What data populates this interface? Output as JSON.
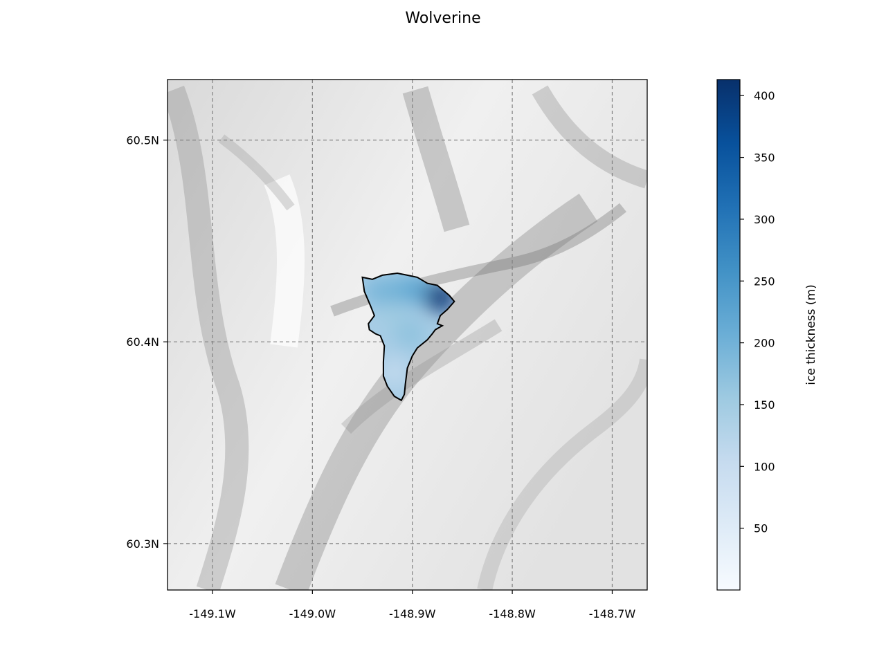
{
  "title": "Wolverine",
  "map": {
    "lon_range": [
      -149.145,
      -148.665
    ],
    "lat_range": [
      60.277,
      60.53
    ],
    "x_ticks": [
      {
        "value": -149.1,
        "label": "-149.1W"
      },
      {
        "value": -149.0,
        "label": "-149.0W"
      },
      {
        "value": -148.9,
        "label": "-148.9W"
      },
      {
        "value": -148.8,
        "label": "-148.8W"
      },
      {
        "value": -148.7,
        "label": "-148.7W"
      }
    ],
    "y_ticks": [
      {
        "value": 60.5,
        "label": "60.5N"
      },
      {
        "value": 60.4,
        "label": "60.4N"
      },
      {
        "value": 60.3,
        "label": "60.3N"
      }
    ],
    "gridlines": true,
    "basemap": "grayscale hillshade terrain",
    "outline_color": "#000000",
    "glacier_outline": [
      [
        -148.95,
        60.432
      ],
      [
        -148.94,
        60.431
      ],
      [
        -148.93,
        60.433
      ],
      [
        -148.915,
        60.434
      ],
      [
        -148.905,
        60.433
      ],
      [
        -148.895,
        60.432
      ],
      [
        -148.885,
        60.429
      ],
      [
        -148.875,
        60.428
      ],
      [
        -148.863,
        60.423
      ],
      [
        -148.858,
        60.42
      ],
      [
        -148.865,
        60.416
      ],
      [
        -148.872,
        60.413
      ],
      [
        -148.875,
        60.409
      ],
      [
        -148.87,
        60.408
      ],
      [
        -148.877,
        60.406
      ],
      [
        -148.88,
        60.404
      ],
      [
        -148.885,
        60.401
      ],
      [
        -148.895,
        60.397
      ],
      [
        -148.9,
        60.393
      ],
      [
        -148.905,
        60.387
      ],
      [
        -148.907,
        60.379
      ],
      [
        -148.908,
        60.374
      ],
      [
        -148.911,
        60.371
      ],
      [
        -148.918,
        60.373
      ],
      [
        -148.925,
        60.378
      ],
      [
        -148.929,
        60.383
      ],
      [
        -148.929,
        60.39
      ],
      [
        -148.928,
        60.398
      ],
      [
        -148.932,
        60.403
      ],
      [
        -148.937,
        60.404
      ],
      [
        -148.943,
        60.406
      ],
      [
        -148.944,
        60.409
      ],
      [
        -148.938,
        60.413
      ],
      [
        -148.942,
        60.418
      ],
      [
        -148.948,
        60.425
      ],
      [
        -148.95,
        60.432
      ]
    ]
  },
  "colorbar": {
    "label": "ice thickness (m)",
    "min": 0,
    "max": 413,
    "ticks": [
      50,
      100,
      150,
      200,
      250,
      300,
      350,
      400
    ],
    "colormap": "Blues",
    "colors": [
      "#f7fbff",
      "#deebf7",
      "#c6dbef",
      "#9ecae1",
      "#6baed6",
      "#4292c6",
      "#2171b5",
      "#08519c",
      "#08306b"
    ]
  },
  "thickness_samples": [
    {
      "lon": -148.935,
      "lat": 60.425,
      "value": 190
    },
    {
      "lon": -148.915,
      "lat": 60.425,
      "value": 200
    },
    {
      "lon": -148.895,
      "lat": 60.426,
      "value": 220
    },
    {
      "lon": -148.872,
      "lat": 60.422,
      "value": 400
    },
    {
      "lon": -148.92,
      "lat": 60.412,
      "value": 150
    },
    {
      "lon": -148.902,
      "lat": 60.404,
      "value": 170
    },
    {
      "lon": -148.918,
      "lat": 60.385,
      "value": 110
    }
  ]
}
